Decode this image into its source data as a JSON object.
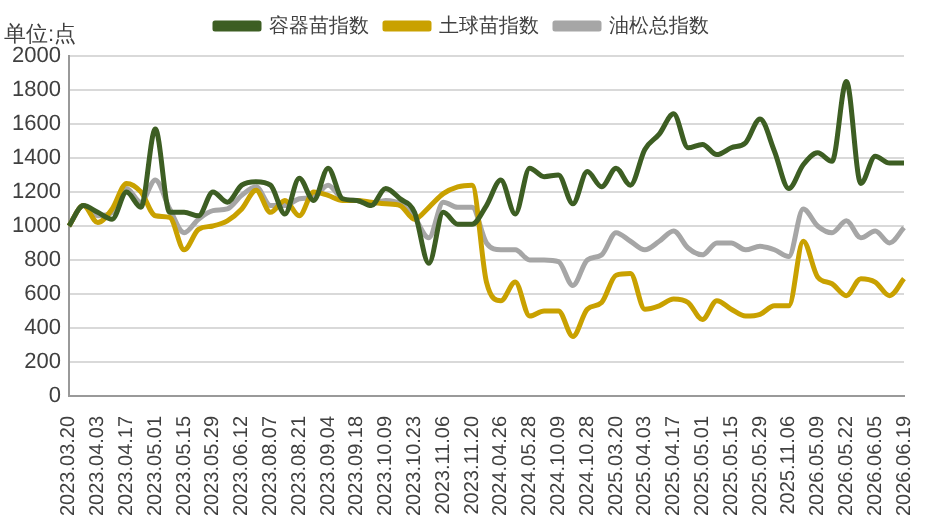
{
  "chart_data": {
    "type": "line",
    "ylabel": "单位:点",
    "categories": [
      "2023.03.20",
      null,
      "2023.04.03",
      null,
      "2023.04.17",
      null,
      "2023.05.01",
      null,
      "2023.05.15",
      null,
      "2023.05.29",
      null,
      "2023.06.12",
      null,
      "2023.08.07",
      null,
      "2023.08.21",
      null,
      "2023.09.04",
      null,
      "2023.09.18",
      null,
      "2023.10.09",
      null,
      "2023.10.23",
      null,
      "2023.11.06",
      null,
      "2023.11.20",
      null,
      "2024.04.26",
      null,
      "2024.05.28",
      null,
      "2024.10.09",
      null,
      "2024.10.28",
      null,
      "2025.03.20",
      null,
      "2025.04.03",
      null,
      "2025.04.17",
      null,
      "2025.05.01",
      null,
      "2025.05.15",
      null,
      "2025.05.29",
      null,
      "2025.11.06",
      null,
      "2026.05.09",
      null,
      "2026.05.22",
      null,
      "2026.06.05",
      null,
      "2026.06.19"
    ],
    "series": [
      {
        "name": "容器苗指数",
        "color": "#3d5e23",
        "values": [
          1000,
          1120,
          1080,
          1040,
          1200,
          1110,
          1570,
          1080,
          1080,
          1060,
          1200,
          1140,
          1240,
          1260,
          1240,
          1070,
          1280,
          1150,
          1340,
          1160,
          1150,
          1120,
          1220,
          1160,
          1080,
          780,
          1080,
          1010,
          1010,
          1120,
          1270,
          1070,
          1340,
          1290,
          1300,
          1130,
          1320,
          1230,
          1340,
          1240,
          1450,
          1540,
          1660,
          1460,
          1480,
          1420,
          1460,
          1490,
          1630,
          1440,
          1220,
          1360,
          1430,
          1380,
          1850,
          1250,
          1410,
          1370,
          1370
        ]
      },
      {
        "name": "土球苗指数",
        "color": "#c9a100",
        "values": [
          1000,
          1120,
          1020,
          1100,
          1250,
          1200,
          1060,
          1050,
          860,
          980,
          1000,
          1030,
          1100,
          1210,
          1080,
          1150,
          1060,
          1200,
          1180,
          1150,
          1150,
          1140,
          1130,
          1120,
          1040,
          1110,
          1190,
          1230,
          1240,
          670,
          560,
          670,
          470,
          500,
          500,
          350,
          510,
          550,
          710,
          720,
          510,
          530,
          570,
          550,
          450,
          560,
          510,
          470,
          480,
          530,
          530,
          910,
          700,
          660,
          590,
          690,
          670,
          590,
          690
        ]
      },
      {
        "name": "油松总指数",
        "color": "#a6a6a6",
        "values": [
          1000,
          1120,
          1060,
          1080,
          1220,
          1140,
          1270,
          1100,
          960,
          1040,
          1090,
          1100,
          1180,
          1230,
          1120,
          1120,
          1160,
          1170,
          1240,
          1160,
          1150,
          1130,
          1150,
          1130,
          1050,
          930,
          1140,
          1110,
          1110,
          900,
          860,
          860,
          800,
          800,
          790,
          650,
          800,
          830,
          960,
          910,
          860,
          910,
          970,
          870,
          830,
          900,
          900,
          860,
          880,
          860,
          820,
          1100,
          1000,
          960,
          1030,
          930,
          970,
          900,
          990
        ]
      }
    ],
    "ylim": [
      0,
      2000
    ],
    "yticks": [
      0,
      200,
      400,
      600,
      800,
      1000,
      1200,
      1400,
      1600,
      1800,
      2000
    ],
    "grid": "y",
    "legend": "top",
    "marker": "none",
    "line_style": "solid"
  }
}
